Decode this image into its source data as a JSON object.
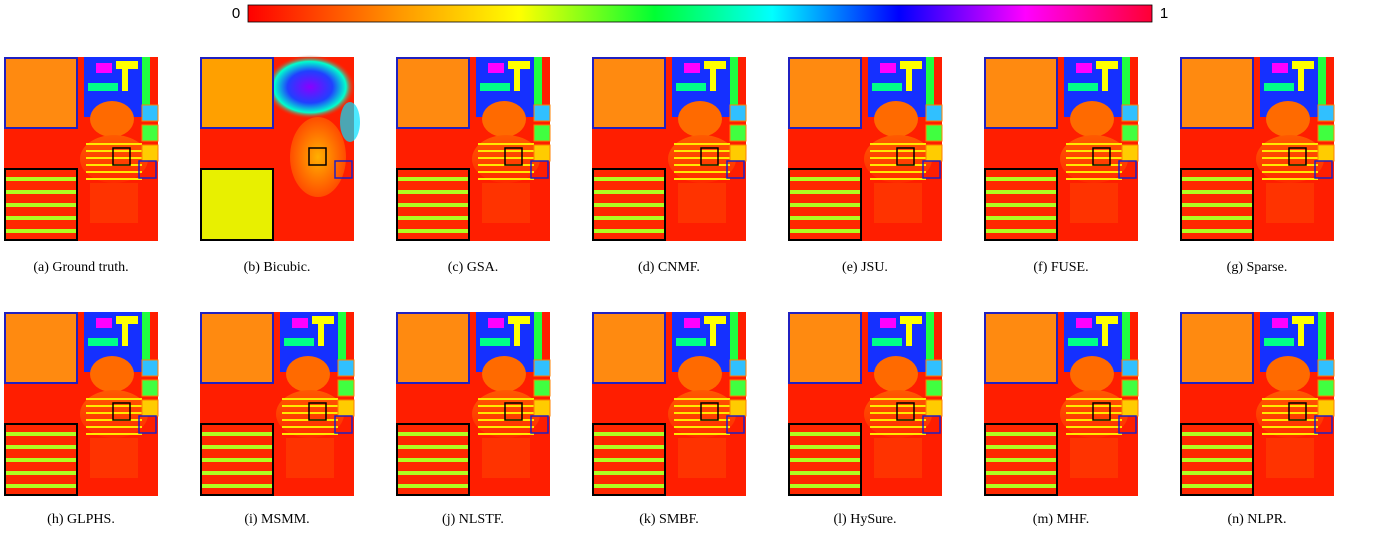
{
  "colorbar": {
    "labels": [
      "0",
      "1"
    ]
  },
  "panels": [
    {
      "caption": "(a) Ground truth."
    },
    {
      "caption": "(b) Bicubic."
    },
    {
      "caption": "(c) GSA."
    },
    {
      "caption": "(d) CNMF."
    },
    {
      "caption": "(e) JSU."
    },
    {
      "caption": "(f) FUSE."
    },
    {
      "caption": "(g) Sparse."
    },
    {
      "caption": "(h) GLPHS."
    },
    {
      "caption": "(i) MSMM."
    },
    {
      "caption": "(j) NLSTF."
    },
    {
      "caption": "(k) SMBF."
    },
    {
      "caption": "(l) HySure."
    },
    {
      "caption": "(m) MHF."
    },
    {
      "caption": "(n) NLPR."
    }
  ]
}
